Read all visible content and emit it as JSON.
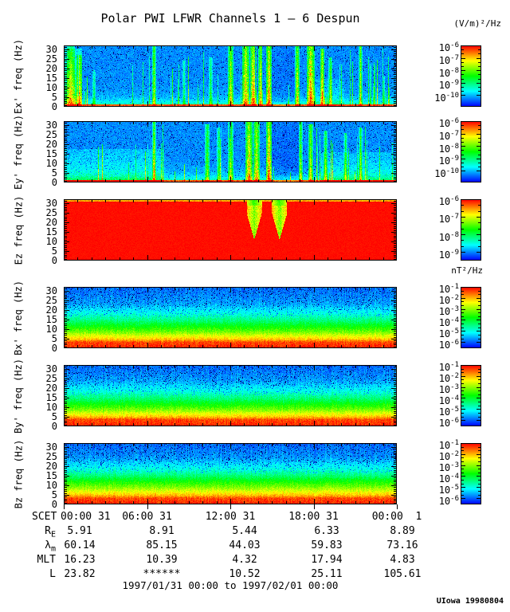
{
  "chart_data": {
    "type": "heatmap",
    "title": "Polar PWI LFWR Channels 1 — 6 Despun",
    "time_range": "1997/01/31 00:00 to 1997/02/01 00:00",
    "credit": "UIowa 19980804",
    "units": {
      "electric": "(V/m)²/Hz",
      "magnetic": "nT²/Hz"
    },
    "freq_axis": {
      "min": 0,
      "max": 32,
      "major_ticks": [
        0,
        5,
        10,
        15,
        20,
        25,
        30
      ]
    },
    "time_axis": {
      "label": "SCET",
      "tick_labels": [
        "00:00 31",
        "06:00 31",
        "12:00 31",
        "18:00 31",
        "00:00  1"
      ],
      "hours": [
        0,
        6,
        12,
        18,
        24
      ]
    },
    "panels": [
      {
        "name": "Ex",
        "ylabel": "Ex' freq (Hz)",
        "pattern": "electric",
        "seed": 101,
        "colorbar": {
          "exponents": [
            -6,
            -7,
            -8,
            -9,
            -10
          ],
          "span": 0.82
        },
        "regions": [
          {
            "t0": 0.0,
            "t1": 0.055,
            "add": 0.38,
            "h": 0.95
          },
          {
            "t0": 0.62,
            "t1": 0.7,
            "add": -0.05,
            "h": 1
          },
          {
            "t0": 0.75,
            "t1": 0.84,
            "add": 0.1,
            "h": 0.45
          }
        ],
        "bursts": [
          {
            "t": 0.02,
            "w": 0.02,
            "s": 0.5,
            "h": 1.0
          },
          {
            "t": 0.045,
            "w": 0.012,
            "s": 0.55,
            "h": 0.85
          },
          {
            "t": 0.09,
            "w": 0.006,
            "s": 0.4,
            "h": 0.6
          },
          {
            "t": 0.27,
            "w": 0.007,
            "s": 0.75,
            "h": 1.0
          },
          {
            "t": 0.36,
            "w": 0.005,
            "s": 0.4,
            "h": 0.75
          },
          {
            "t": 0.44,
            "w": 0.007,
            "s": 0.45,
            "h": 0.8
          },
          {
            "t": 0.5,
            "w": 0.012,
            "s": 0.8,
            "h": 1.0
          },
          {
            "t": 0.545,
            "w": 0.018,
            "s": 0.9,
            "h": 1.0
          },
          {
            "t": 0.568,
            "w": 0.016,
            "s": 0.95,
            "h": 1.0
          },
          {
            "t": 0.59,
            "w": 0.01,
            "s": 0.85,
            "h": 1.0
          },
          {
            "t": 0.615,
            "w": 0.012,
            "s": 1.0,
            "h": 1.0
          },
          {
            "t": 0.7,
            "w": 0.009,
            "s": 0.85,
            "h": 1.0
          },
          {
            "t": 0.74,
            "w": 0.018,
            "s": 1.0,
            "h": 1.0
          },
          {
            "t": 0.775,
            "w": 0.009,
            "s": 0.9,
            "h": 0.95
          },
          {
            "t": 0.8,
            "w": 0.007,
            "s": 0.7,
            "h": 0.8
          },
          {
            "t": 0.89,
            "w": 0.006,
            "s": 0.8,
            "h": 1.0
          },
          {
            "t": 0.96,
            "w": 0.004,
            "s": 0.4,
            "h": 0.5
          }
        ]
      },
      {
        "name": "Ey",
        "ylabel": "Ey' freq (Hz)",
        "pattern": "electric",
        "seed": 202,
        "colorbar": {
          "exponents": [
            -6,
            -7,
            -8,
            -9,
            -10
          ],
          "span": 0.82
        },
        "regions": [
          {
            "t0": 0.0,
            "t1": 0.3,
            "add": 0.16,
            "h": 0.55
          },
          {
            "t0": 0.625,
            "t1": 0.72,
            "add": -0.07,
            "h": 1
          },
          {
            "t0": 0.77,
            "t1": 1.0,
            "add": 0.14,
            "h": 0.5
          }
        ],
        "bursts": [
          {
            "t": 0.27,
            "w": 0.006,
            "s": 0.8,
            "h": 1.0
          },
          {
            "t": 0.43,
            "w": 0.01,
            "s": 0.6,
            "h": 0.95
          },
          {
            "t": 0.465,
            "w": 0.008,
            "s": 0.5,
            "h": 0.9
          },
          {
            "t": 0.5,
            "w": 0.012,
            "s": 0.65,
            "h": 1.0
          },
          {
            "t": 0.555,
            "w": 0.016,
            "s": 0.9,
            "h": 1.0
          },
          {
            "t": 0.578,
            "w": 0.014,
            "s": 0.85,
            "h": 1.0
          },
          {
            "t": 0.615,
            "w": 0.013,
            "s": 1.0,
            "h": 1.0
          },
          {
            "t": 0.71,
            "w": 0.008,
            "s": 0.7,
            "h": 1.0
          },
          {
            "t": 0.74,
            "w": 0.01,
            "s": 0.75,
            "h": 0.95
          },
          {
            "t": 0.785,
            "w": 0.007,
            "s": 0.6,
            "h": 0.85
          },
          {
            "t": 0.845,
            "w": 0.006,
            "s": 0.55,
            "h": 0.8
          },
          {
            "t": 0.89,
            "w": 0.006,
            "s": 0.6,
            "h": 0.9
          }
        ]
      },
      {
        "name": "Ez",
        "ylabel": "Ez freq (Hz)",
        "pattern": "saturated",
        "seed": 303,
        "colorbar": {
          "exponents": [
            -6,
            -7,
            -8,
            -9
          ],
          "span": 0.87
        },
        "notches": [
          {
            "t": 0.572,
            "w": 0.048
          },
          {
            "t": 0.648,
            "w": 0.048
          }
        ]
      },
      {
        "name": "Bx",
        "ylabel": "Bx' freq (Hz)",
        "pattern": "magnetic",
        "seed": 404,
        "colorbar": {
          "exponents": [
            -1,
            -2,
            -3,
            -4,
            -5,
            -6
          ],
          "span": 0.91
        },
        "profile": [
          [
            0,
            0.97
          ],
          [
            0.1,
            0.93
          ],
          [
            0.14,
            0.82
          ],
          [
            0.2,
            0.72
          ],
          [
            0.27,
            0.6
          ],
          [
            0.35,
            0.5
          ],
          [
            0.45,
            0.38
          ],
          [
            0.56,
            0.28
          ],
          [
            0.72,
            0.16
          ],
          [
            1,
            0.1
          ]
        ]
      },
      {
        "name": "By",
        "ylabel": "By' freq (Hz)",
        "pattern": "magnetic",
        "seed": 505,
        "colorbar": {
          "exponents": [
            -1,
            -2,
            -3,
            -4,
            -5,
            -6
          ],
          "span": 0.91
        },
        "profile": [
          [
            0,
            0.97
          ],
          [
            0.11,
            0.93
          ],
          [
            0.15,
            0.82
          ],
          [
            0.21,
            0.72
          ],
          [
            0.28,
            0.6
          ],
          [
            0.36,
            0.5
          ],
          [
            0.46,
            0.38
          ],
          [
            0.58,
            0.27
          ],
          [
            0.74,
            0.16
          ],
          [
            1,
            0.1
          ]
        ]
      },
      {
        "name": "Bz",
        "ylabel": "Bz freq (Hz)",
        "pattern": "magnetic",
        "seed": 606,
        "colorbar": {
          "exponents": [
            -1,
            -2,
            -3,
            -4,
            -5,
            -6
          ],
          "span": 0.91
        },
        "profile": [
          [
            0,
            0.97
          ],
          [
            0.1,
            0.93
          ],
          [
            0.14,
            0.83
          ],
          [
            0.2,
            0.74
          ],
          [
            0.28,
            0.62
          ],
          [
            0.38,
            0.5
          ],
          [
            0.48,
            0.37
          ],
          [
            0.6,
            0.26
          ],
          [
            0.76,
            0.15
          ],
          [
            1,
            0.1
          ]
        ]
      }
    ],
    "ephemeris_rows": [
      {
        "label": "R",
        "sub": "E",
        "values": [
          "5.91",
          "8.91",
          "5.44",
          "6.33",
          "8.89"
        ]
      },
      {
        "label": "λ",
        "sub": "m",
        "values": [
          "60.14",
          "85.15",
          "44.03",
          "59.83",
          "73.16"
        ]
      },
      {
        "label": "MLT",
        "sub": "",
        "values": [
          "16.23",
          "10.39",
          "4.32",
          "17.94",
          "4.83"
        ]
      },
      {
        "label": "L",
        "sub": "",
        "values": [
          "23.82",
          "******",
          "10.52",
          "25.11",
          "105.61"
        ]
      }
    ]
  }
}
